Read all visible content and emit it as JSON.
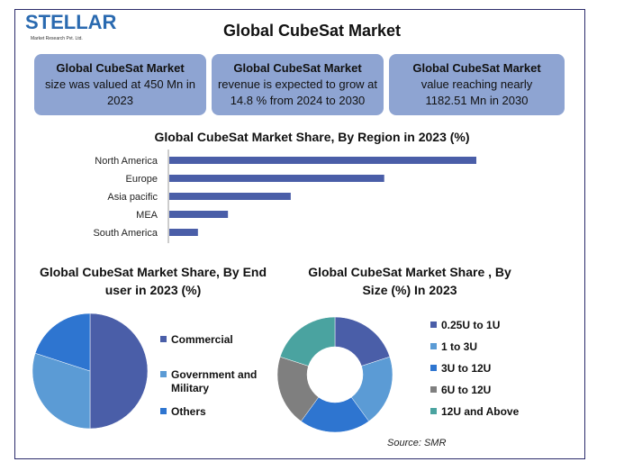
{
  "logo": {
    "name": "STELLAR",
    "tagline": "Market Research Pvt. Ltd."
  },
  "title": "Global CubeSat Market",
  "stats": [
    {
      "title": "Global CubeSat Market",
      "body": "size was valued at 450 Mn in 2023"
    },
    {
      "title": "Global CubeSat Market",
      "body": "revenue is expected to grow at 14.8 % from 2024 to 2030"
    },
    {
      "title": "Global CubeSat Market",
      "body": "value reaching nearly 1182.51 Mn in 2030"
    }
  ],
  "colors": {
    "box": "#8ea4d2",
    "bar": "#4a5ea8",
    "commercial": "#4a5ea8",
    "government": "#5b9bd5",
    "others": "#2e75d0",
    "teal": "#4aa3a0",
    "gray": "#7f7f7f"
  },
  "chart_data": [
    {
      "type": "bar",
      "orientation": "horizontal",
      "title": "Global CubeSat Market Share, By Region in 2023 (%)",
      "categories": [
        "North America",
        "Europe",
        "Asia pacific",
        "MEA",
        "South America"
      ],
      "values": [
        45,
        31.5,
        17.8,
        8.6,
        4.2
      ],
      "grid": false
    },
    {
      "type": "pie",
      "title": "Global CubeSat Market Share, By End user in 2023 (%)",
      "categories": [
        "Commercial",
        "Government and Military",
        "Others"
      ],
      "values": [
        50,
        30,
        20
      ],
      "colors": [
        "#4a5ea8",
        "#5b9bd5",
        "#2e75d0"
      ],
      "legend": "right"
    },
    {
      "type": "pie",
      "variant": "donut",
      "title": "Global CubeSat Market Share , By Size (%) In 2023",
      "categories": [
        "0.25U to 1U",
        "1 to 3U",
        "3U to 12U",
        "6U to 12U",
        "12U and Above"
      ],
      "values": [
        20,
        20,
        20,
        20,
        20
      ],
      "colors": [
        "#4a5ea8",
        "#5b9bd5",
        "#2e75d0",
        "#7f7f7f",
        "#4aa3a0"
      ],
      "legend": "right"
    }
  ],
  "source": "Source: SMR"
}
